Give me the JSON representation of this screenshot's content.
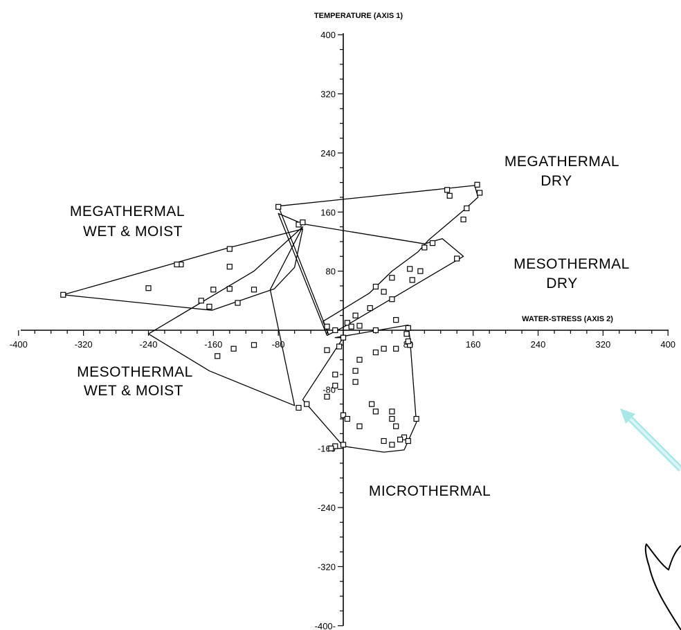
{
  "chart_data": {
    "type": "scatter",
    "xlabel": "WATER-STRESS (AXIS 2)",
    "ylabel": "TEMPERATURE (AXIS 1)",
    "xlim": [
      -400,
      400
    ],
    "ylim": [
      -400,
      400
    ],
    "x_ticks": [
      -400,
      -320,
      -240,
      -160,
      -80,
      80,
      160,
      240,
      320,
      400
    ],
    "y_ticks": [
      -400,
      -320,
      -240,
      -160,
      -80,
      80,
      160,
      240,
      320,
      400
    ],
    "x_tick_labels": [
      "-400",
      "-320",
      "-240",
      "-160",
      "-80",
      "80",
      "160",
      "240",
      "320",
      "400"
    ],
    "y_tick_labels": [
      "-400-",
      "-320",
      "-240",
      "-160",
      "-80",
      "80",
      "160",
      "240",
      "320",
      "400"
    ],
    "grid": false,
    "regions": [
      {
        "label_lines": [
          "MEGATHERMAL",
          "DRY"
        ],
        "hull": [
          [
            -80,
            168
          ],
          [
            128,
            192
          ],
          [
            162,
            196
          ],
          [
            166,
            180
          ],
          [
            148,
            162
          ],
          [
            105,
            122
          ],
          [
            92,
            106
          ],
          [
            60,
            80
          ],
          [
            32,
            50
          ],
          [
            -25,
            12
          ],
          [
            -18,
            -6
          ]
        ]
      },
      {
        "label_lines": [
          "MEGATHERMAL",
          "WET & MOIST"
        ],
        "hull": [
          [
            -345,
            48
          ],
          [
            -140,
            112
          ],
          [
            -50,
            137
          ],
          [
            -60,
            85
          ],
          [
            -85,
            56
          ],
          [
            -162,
            27
          ]
        ]
      },
      {
        "label_lines": [
          "MESOTHERMAL",
          "DRY"
        ],
        "hull": [
          [
            -80,
            158
          ],
          [
            -50,
            144
          ],
          [
            100,
            117
          ],
          [
            122,
            124
          ],
          [
            148,
            100
          ],
          [
            0,
            4
          ],
          [
            -20,
            -7
          ]
        ]
      },
      {
        "label_lines": [
          "MESOTHERMAL",
          "WET & MOIST"
        ],
        "hull": [
          [
            -240,
            -5
          ],
          [
            -165,
            -55
          ],
          [
            -60,
            -102
          ],
          [
            -90,
            55
          ],
          [
            -50,
            140
          ],
          [
            -110,
            80
          ]
        ]
      },
      {
        "label_lines": [
          "MICROTHERMAL"
        ],
        "hull": [
          [
            -10,
            -10
          ],
          [
            80,
            7
          ],
          [
            82,
            -10
          ],
          [
            90,
            -125
          ],
          [
            75,
            -162
          ],
          [
            50,
            -165
          ],
          [
            0,
            -157
          ],
          [
            -50,
            -94
          ],
          [
            0,
            -10
          ]
        ]
      }
    ],
    "points": [
      [
        -345,
        48
      ],
      [
        -200,
        89
      ],
      [
        -205,
        89
      ],
      [
        -140,
        110
      ],
      [
        -140,
        86
      ],
      [
        -240,
        57
      ],
      [
        -160,
        55
      ],
      [
        -175,
        40
      ],
      [
        -165,
        32
      ],
      [
        -140,
        56
      ],
      [
        -130,
        37
      ],
      [
        -110,
        55
      ],
      [
        -80,
        167
      ],
      [
        -55,
        143
      ],
      [
        -50,
        146
      ],
      [
        128,
        190
      ],
      [
        131,
        182
      ],
      [
        165,
        197
      ],
      [
        168,
        186
      ],
      [
        152,
        165
      ],
      [
        148,
        150
      ],
      [
        100,
        112
      ],
      [
        110,
        118
      ],
      [
        140,
        97
      ],
      [
        82,
        83
      ],
      [
        95,
        80
      ],
      [
        85,
        68
      ],
      [
        60,
        71
      ],
      [
        40,
        59
      ],
      [
        50,
        52
      ],
      [
        60,
        42
      ],
      [
        33,
        30
      ],
      [
        15,
        20
      ],
      [
        -20,
        5
      ],
      [
        -10,
        0
      ],
      [
        5,
        10
      ],
      [
        10,
        5
      ],
      [
        20,
        6
      ],
      [
        40,
        0
      ],
      [
        65,
        14
      ],
      [
        80,
        3
      ],
      [
        78,
        -5
      ],
      [
        82,
        -20
      ],
      [
        -20,
        -27
      ],
      [
        -5,
        -22
      ],
      [
        0,
        -10
      ],
      [
        -155,
        -35
      ],
      [
        -135,
        -25
      ],
      [
        -110,
        -20
      ],
      [
        -45,
        -100
      ],
      [
        -55,
        -105
      ],
      [
        -10,
        -60
      ],
      [
        20,
        -40
      ],
      [
        40,
        -30
      ],
      [
        50,
        -25
      ],
      [
        65,
        -25
      ],
      [
        80,
        -15
      ],
      [
        15,
        -55
      ],
      [
        -10,
        -75
      ],
      [
        15,
        -70
      ],
      [
        -20,
        -90
      ],
      [
        0,
        -115
      ],
      [
        5,
        -120
      ],
      [
        20,
        -130
      ],
      [
        60,
        -110
      ],
      [
        60,
        -120
      ],
      [
        65,
        -130
      ],
      [
        50,
        -150
      ],
      [
        60,
        -155
      ],
      [
        75,
        -145
      ],
      [
        70,
        -148
      ],
      [
        80,
        -150
      ],
      [
        90,
        -120
      ],
      [
        -10,
        -157
      ],
      [
        -15,
        -160
      ],
      [
        0,
        -155
      ],
      [
        35,
        -100
      ],
      [
        40,
        -110
      ]
    ]
  }
}
